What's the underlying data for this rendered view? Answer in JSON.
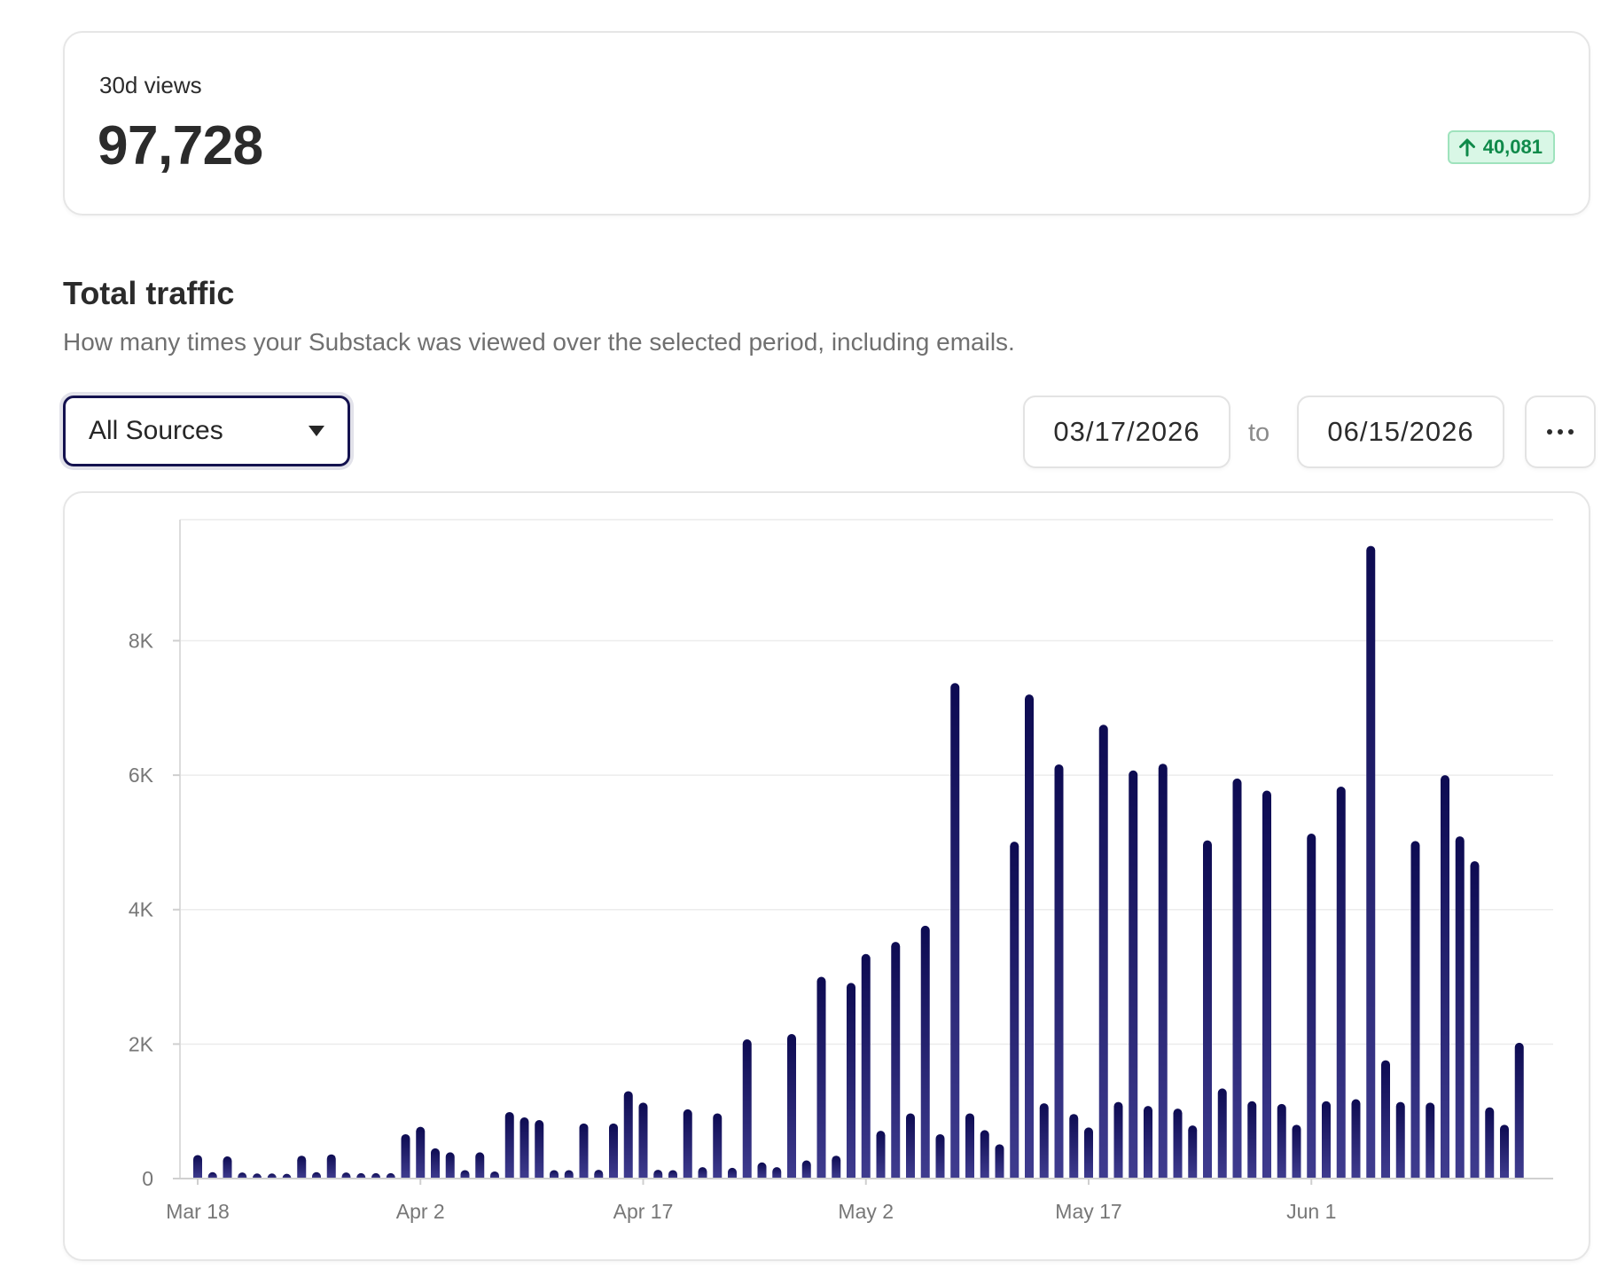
{
  "summary": {
    "label": "30d views",
    "value": "97,728",
    "change": "40,081",
    "change_icon": "arrow-up-icon"
  },
  "section": {
    "title": "Total traffic",
    "description": "How many times your Substack was viewed over the selected period, including emails."
  },
  "controls": {
    "source_selected": "All Sources",
    "start_date": "03/17/2026",
    "to_label": "to",
    "end_date": "06/15/2026",
    "more_icon": "more-horizontal-icon"
  },
  "colors": {
    "bar": "#0d0b52",
    "bar_bottom": "#3f3c8f",
    "badge_bg": "#d9f7e6",
    "badge_text": "#0f8a4a",
    "select_border": "#14124f"
  },
  "chart_data": {
    "type": "bar",
    "title": "",
    "xlabel": "",
    "ylabel": "",
    "ylim": [
      0,
      9800
    ],
    "yticks": [
      0,
      2000,
      4000,
      6000,
      8000
    ],
    "ytick_labels": [
      "0",
      "2K",
      "4K",
      "6K",
      "8K"
    ],
    "xtick_labels": [
      "Mar 18",
      "Apr 2",
      "Apr 17",
      "May 2",
      "May 17",
      "Jun 1"
    ],
    "xtick_dates": [
      "2026-03-18",
      "2026-04-02",
      "2026-04-17",
      "2026-05-02",
      "2026-05-17",
      "2026-06-01"
    ],
    "grid": true,
    "x_start": "2026-03-18",
    "x_end": "2026-06-15",
    "values": [
      350,
      60,
      330,
      50,
      20,
      20,
      10,
      340,
      60,
      360,
      50,
      30,
      30,
      30,
      660,
      770,
      450,
      390,
      120,
      390,
      80,
      990,
      910,
      870,
      120,
      120,
      820,
      130,
      820,
      1300,
      1130,
      130,
      120,
      1030,
      170,
      970,
      160,
      2070,
      240,
      170,
      2150,
      270,
      3000,
      340,
      2910,
      3340,
      710,
      3520,
      970,
      3760,
      660,
      7370,
      970,
      720,
      510,
      5010,
      7200,
      1120,
      6160,
      960,
      760,
      6750,
      1140,
      6070,
      1080,
      6170,
      1040,
      790,
      5030,
      1340,
      5950,
      1150,
      5770,
      1110,
      800,
      5130,
      1150,
      5830,
      1180,
      9410,
      1760,
      1140,
      5020,
      1130,
      6000,
      5090,
      4720,
      1060,
      800,
      2020
    ]
  }
}
